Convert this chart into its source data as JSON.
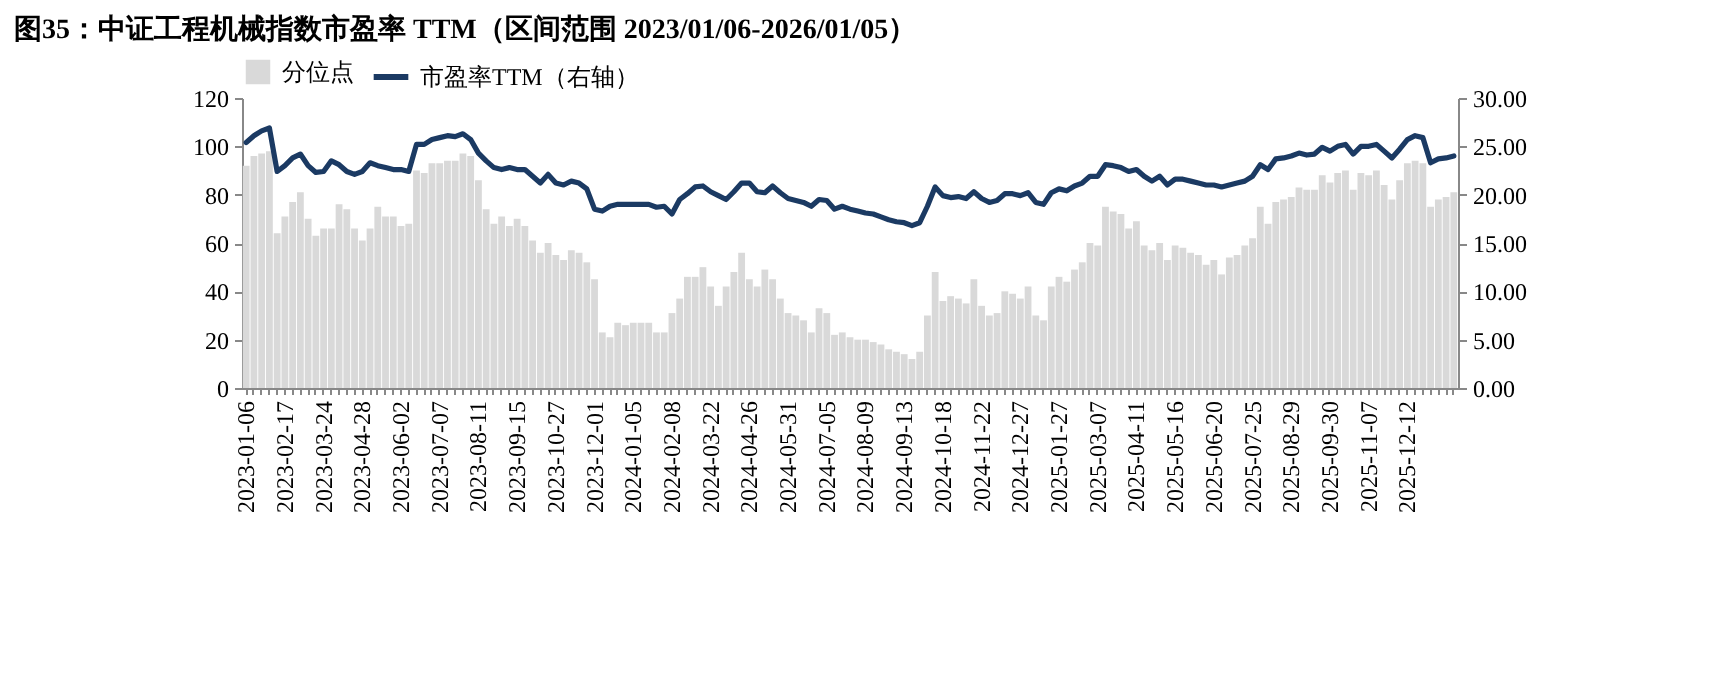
{
  "chart_data": {
    "type": "bar",
    "title": "图35：中证工程机械指数市盈率 TTM（区间范围 2023/01/06-2026/01/05）",
    "categories": [
      "2023-01-06",
      null,
      null,
      null,
      null,
      "2023-02-17",
      null,
      null,
      null,
      null,
      "2023-03-24",
      null,
      null,
      null,
      null,
      "2023-04-28",
      null,
      null,
      null,
      null,
      "2023-06-02",
      null,
      null,
      null,
      null,
      "2023-07-07",
      null,
      null,
      null,
      null,
      "2023-08-11",
      null,
      null,
      null,
      null,
      "2023-09-15",
      null,
      null,
      null,
      null,
      "2023-10-27",
      null,
      null,
      null,
      null,
      "2023-12-01",
      null,
      null,
      null,
      null,
      "2024-01-05",
      null,
      null,
      null,
      null,
      "2024-02-08",
      null,
      null,
      null,
      null,
      "2024-03-22",
      null,
      null,
      null,
      null,
      "2024-04-26",
      null,
      null,
      null,
      null,
      "2024-05-31",
      null,
      null,
      null,
      null,
      "2024-07-05",
      null,
      null,
      null,
      null,
      "2024-08-09",
      null,
      null,
      null,
      null,
      "2024-09-13",
      null,
      null,
      null,
      null,
      "2024-10-18",
      null,
      null,
      null,
      null,
      "2024-11-22",
      null,
      null,
      null,
      null,
      "2024-12-27",
      null,
      null,
      null,
      null,
      "2025-01-27",
      null,
      null,
      null,
      null,
      "2025-03-07",
      null,
      null,
      null,
      null,
      "2025-04-11",
      null,
      null,
      null,
      null,
      "2025-05-16",
      null,
      null,
      null,
      null,
      "2025-06-20",
      null,
      null,
      null,
      null,
      "2025-07-25",
      null,
      null,
      null,
      null,
      "2025-08-29",
      null,
      null,
      null,
      null,
      "2025-09-30",
      null,
      null,
      null,
      null,
      "2025-11-07",
      null,
      null,
      null,
      null,
      "2025-12-12",
      null,
      null,
      null,
      null,
      null,
      null
    ],
    "series": [
      {
        "name": "分位点",
        "color": "#d9d9d9",
        "values": [
          92,
          96,
          97,
          98,
          64,
          71,
          77,
          81,
          70,
          63,
          66,
          66,
          76,
          74,
          66,
          61,
          66,
          75,
          71,
          71,
          67,
          68,
          90,
          89,
          93,
          93,
          94,
          94,
          97,
          96,
          86,
          74,
          68,
          71,
          67,
          70,
          67,
          61,
          56,
          60,
          55,
          53,
          57,
          56,
          52,
          45,
          23,
          21,
          27,
          26,
          27,
          27,
          27,
          23,
          23,
          31,
          37,
          46,
          46,
          50,
          42,
          34,
          42,
          48,
          56,
          45,
          42,
          49,
          45,
          37,
          31,
          30,
          28,
          23,
          33,
          31,
          22,
          23,
          21,
          20,
          20,
          19,
          18,
          16,
          15,
          14,
          12,
          15,
          30,
          48,
          36,
          38,
          37,
          35,
          45,
          34,
          30,
          31,
          40,
          39,
          37,
          42,
          30,
          28,
          42,
          46,
          44,
          49,
          52,
          60,
          59,
          75,
          73,
          72,
          66,
          69,
          59,
          57,
          60,
          53,
          59,
          58,
          56,
          55,
          51,
          53,
          47,
          54,
          55,
          59,
          62,
          75,
          68,
          77,
          78,
          79,
          83,
          82,
          82,
          88,
          85,
          89,
          90,
          82,
          89,
          88,
          90,
          84,
          78,
          86,
          93,
          94,
          93,
          75,
          78,
          79,
          81
        ]
      },
      {
        "name": "市盈率TTM（右轴）",
        "type": "line",
        "axis": "y2",
        "color": "#1b3a63",
        "values": [
          25.4,
          26.1,
          26.6,
          26.9,
          22.4,
          23.0,
          23.8,
          24.2,
          23.0,
          22.3,
          22.4,
          23.5,
          23.1,
          22.4,
          22.1,
          22.4,
          23.3,
          23.0,
          22.8,
          22.6,
          22.6,
          22.4,
          25.2,
          25.2,
          25.7,
          25.9,
          26.1,
          26.0,
          26.3,
          25.7,
          24.3,
          23.5,
          22.8,
          22.6,
          22.8,
          22.6,
          22.6,
          21.9,
          21.2,
          22.1,
          21.2,
          21.0,
          21.4,
          21.2,
          20.6,
          18.5,
          18.3,
          18.8,
          19.0,
          19.0,
          19.0,
          19.0,
          19.0,
          18.7,
          18.8,
          18.0,
          19.5,
          20.1,
          20.8,
          20.9,
          20.3,
          19.9,
          19.5,
          20.3,
          21.2,
          21.2,
          20.3,
          20.2,
          20.9,
          20.2,
          19.6,
          19.4,
          19.2,
          18.8,
          19.5,
          19.4,
          18.5,
          18.8,
          18.5,
          18.3,
          18.1,
          18.0,
          17.7,
          17.4,
          17.2,
          17.1,
          16.8,
          17.1,
          18.8,
          20.8,
          19.9,
          19.7,
          19.8,
          19.6,
          20.3,
          19.6,
          19.2,
          19.4,
          20.1,
          20.1,
          19.9,
          20.2,
          19.2,
          19.0,
          20.2,
          20.6,
          20.4,
          20.9,
          21.2,
          21.9,
          21.9,
          23.1,
          23.0,
          22.8,
          22.4,
          22.6,
          21.9,
          21.4,
          21.9,
          21.0,
          21.6,
          21.6,
          21.4,
          21.2,
          21.0,
          21.0,
          20.8,
          21.0,
          21.2,
          21.4,
          21.9,
          23.1,
          22.6,
          23.7,
          23.8,
          24.0,
          24.3,
          24.1,
          24.2,
          24.9,
          24.5,
          25.0,
          25.2,
          24.2,
          25.0,
          25.0,
          25.2,
          24.5,
          23.8,
          24.7,
          25.7,
          26.1,
          25.9,
          23.3,
          23.7,
          23.8,
          24.0
        ]
      }
    ],
    "ylim": [
      0,
      120
    ],
    "yticks": [
      0,
      20,
      40,
      60,
      80,
      100,
      120
    ],
    "y2lim": [
      0,
      30
    ],
    "y2ticks": [
      {
        "value": 0,
        "label": "0.00"
      },
      {
        "value": 5,
        "label": "5.00"
      },
      {
        "value": 10,
        "label": "10.00"
      },
      {
        "value": 15,
        "label": "15.00"
      },
      {
        "value": 20,
        "label": "20.00"
      },
      {
        "value": 25,
        "label": "25.00"
      },
      {
        "value": 30,
        "label": "30.00"
      }
    ],
    "legend": "top"
  }
}
